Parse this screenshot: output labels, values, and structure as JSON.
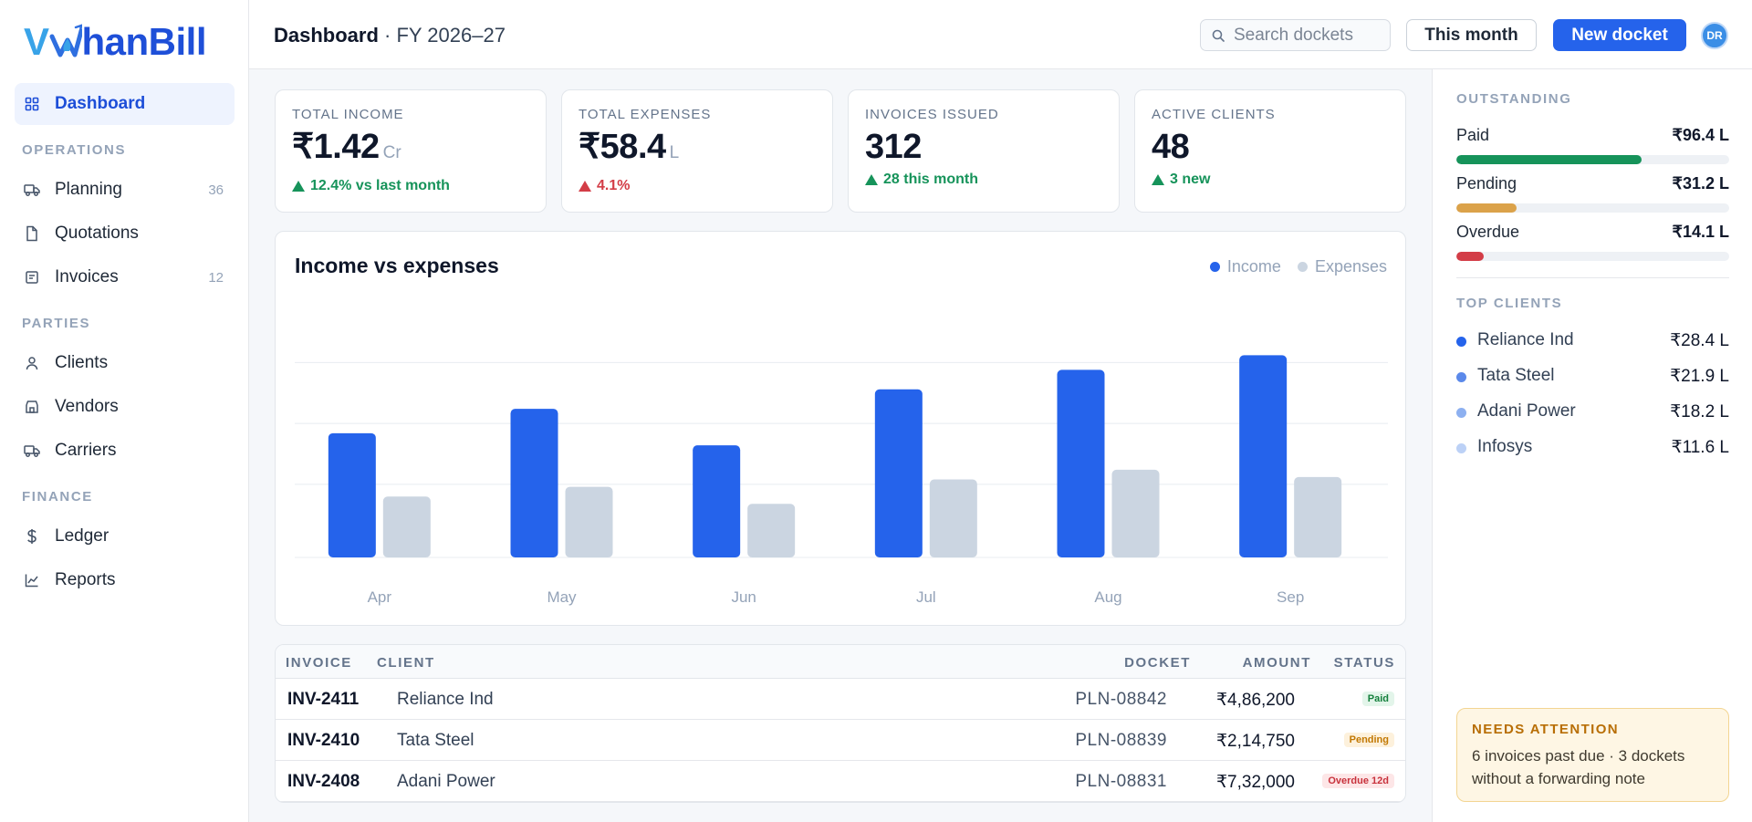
{
  "app": {
    "logo_v": "V",
    "logo_rest": "hanBill"
  },
  "sidebar": {
    "items": [
      {
        "label": "Dashboard",
        "icon": "grid-icon",
        "active": true
      },
      {
        "section": "OPERATIONS"
      },
      {
        "label": "Planning",
        "icon": "truck-icon",
        "count": "36"
      },
      {
        "label": "Quotations",
        "icon": "file-icon"
      },
      {
        "label": "Invoices",
        "icon": "receipt-icon",
        "count": "12"
      },
      {
        "section": "PARTIES"
      },
      {
        "label": "Clients",
        "icon": "user-icon"
      },
      {
        "label": "Vendors",
        "icon": "store-icon"
      },
      {
        "label": "Carriers",
        "icon": "truck-icon"
      },
      {
        "section": "FINANCE"
      },
      {
        "label": "Ledger",
        "icon": "dollar-icon"
      },
      {
        "label": "Reports",
        "icon": "chart-line-icon"
      }
    ]
  },
  "header": {
    "title": "Dashboard",
    "separator": " · ",
    "subtitle": "FY 2026–27",
    "search_placeholder": "Search dockets",
    "this_month": "This month",
    "new_docket": "New docket",
    "avatar_initials": "DR"
  },
  "kpis": [
    {
      "label": "TOTAL INCOME",
      "value": "₹1.42",
      "unit": "Cr",
      "delta": "12.4% vs last month",
      "trend": "up"
    },
    {
      "label": "TOTAL EXPENSES",
      "value": "₹58.4",
      "unit": "L",
      "delta": "4.1%",
      "trend": "down"
    },
    {
      "label": "INVOICES ISSUED",
      "value": "312",
      "unit": "",
      "delta": "28 this month",
      "trend": "up"
    },
    {
      "label": "ACTIVE CLIENTS",
      "value": "48",
      "unit": "",
      "delta": "3 new",
      "trend": "up"
    }
  ],
  "chart": {
    "title": "Income vs expenses",
    "legend": [
      "Income",
      "Expenses"
    ]
  },
  "chart_data": {
    "type": "bar",
    "title": "Income vs expenses",
    "categories": [
      "Apr",
      "May",
      "Jun",
      "Jul",
      "Aug",
      "Sep"
    ],
    "series": [
      {
        "name": "Income",
        "color": "#2563eb",
        "values": [
          51,
          61,
          46,
          69,
          77,
          83
        ]
      },
      {
        "name": "Expenses",
        "color": "#cbd5e1",
        "values": [
          25,
          29,
          22,
          32,
          36,
          33
        ]
      }
    ],
    "ylim": [
      0,
      100
    ],
    "grid": true,
    "legend_position": "top-right"
  },
  "table": {
    "headers": {
      "invoice": "INVOICE",
      "client": "CLIENT",
      "docket": "DOCKET",
      "amount": "AMOUNT",
      "status": "STATUS"
    },
    "rows": [
      {
        "invoice": "INV-2411",
        "client": "Reliance Ind",
        "docket": "PLN-08842",
        "amount": "₹4,86,200",
        "status": "Paid",
        "kind": "paid"
      },
      {
        "invoice": "INV-2410",
        "client": "Tata Steel",
        "docket": "PLN-08839",
        "amount": "₹2,14,750",
        "status": "Pending",
        "kind": "pending"
      },
      {
        "invoice": "INV-2408",
        "client": "Adani Power",
        "docket": "PLN-08831",
        "amount": "₹7,32,000",
        "status": "Overdue 12d",
        "kind": "overdue"
      }
    ]
  },
  "outstanding": {
    "title": "OUTSTANDING",
    "items": [
      {
        "label": "Paid",
        "value": "₹96.4 L",
        "fraction": 0.68,
        "color": "#16935a"
      },
      {
        "label": "Pending",
        "value": "₹31.2 L",
        "fraction": 0.22,
        "color": "#dba24a"
      },
      {
        "label": "Overdue",
        "value": "₹14.1 L",
        "fraction": 0.1,
        "color": "#d33d47"
      }
    ]
  },
  "top_clients": {
    "title": "TOP CLIENTS",
    "items": [
      {
        "name": "Reliance Ind",
        "value": "₹28.4 L",
        "color": "#2563eb"
      },
      {
        "name": "Tata Steel",
        "value": "₹21.9 L",
        "color": "#5b89ea"
      },
      {
        "name": "Adani Power",
        "value": "₹18.2 L",
        "color": "#8db0f0"
      },
      {
        "name": "Infosys",
        "value": "₹11.6 L",
        "color": "#bcd1f6"
      }
    ]
  },
  "attention": {
    "title": "NEEDS ATTENTION",
    "text": "6 invoices past due · 3 dockets without a forwarding note"
  }
}
